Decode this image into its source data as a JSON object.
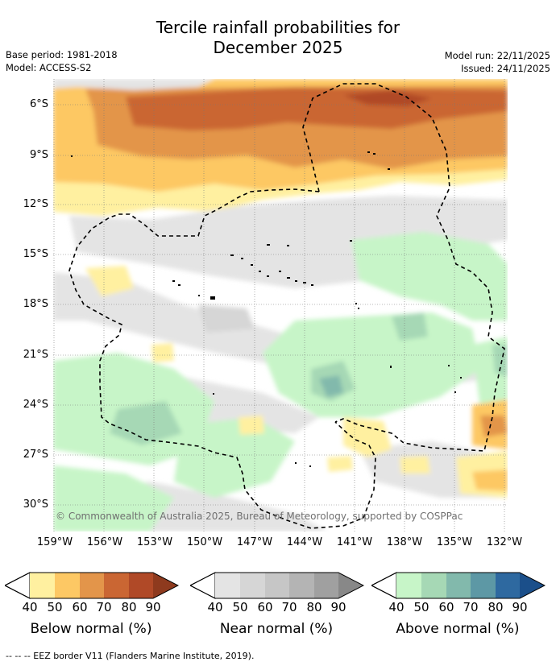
{
  "title": {
    "line1": "Tercile rainfall probabilities for",
    "line2": "December 2025"
  },
  "meta": {
    "base_period": "Base period: 1981-2018",
    "model": "Model: ACCESS-S2",
    "model_run": "Model run: 22/11/2025",
    "issued": "Issued: 24/11/2025"
  },
  "map": {
    "lat_labels": [
      "6°S",
      "9°S",
      "12°S",
      "15°S",
      "18°S",
      "21°S",
      "24°S",
      "27°S",
      "30°S"
    ],
    "lon_labels": [
      "159°W",
      "156°W",
      "153°W",
      "150°W",
      "147°W",
      "144°W",
      "141°W",
      "138°W",
      "135°W",
      "132°W"
    ],
    "copyright": "© Commonwealth of Australia 2025, Bureau of Meteorology, supported by COSPPac"
  },
  "colorbars": [
    {
      "label": "Below normal (%)",
      "ticks": [
        "40",
        "50",
        "60",
        "70",
        "80",
        "90"
      ],
      "colors": [
        "#fff0a0",
        "#fdc864",
        "#e3954a",
        "#ca6633",
        "#b04927",
        "#8e3a1e"
      ]
    },
    {
      "label": "Near normal (%)",
      "ticks": [
        "40",
        "50",
        "60",
        "70",
        "80",
        "90"
      ],
      "colors": [
        "#e4e4e4",
        "#d6d6d6",
        "#c6c6c6",
        "#b4b4b4",
        "#a0a0a0",
        "#888888"
      ]
    },
    {
      "label": "Above normal (%)",
      "ticks": [
        "40",
        "50",
        "60",
        "70",
        "80",
        "90"
      ],
      "colors": [
        "#c7f5c8",
        "#a6d8b5",
        "#82b9ac",
        "#5d98a5",
        "#2e69a0",
        "#1b4f8a"
      ]
    }
  ],
  "footer": "--  --  -- EEZ border V11 (Flanders Marine Institute, 2019)."
}
